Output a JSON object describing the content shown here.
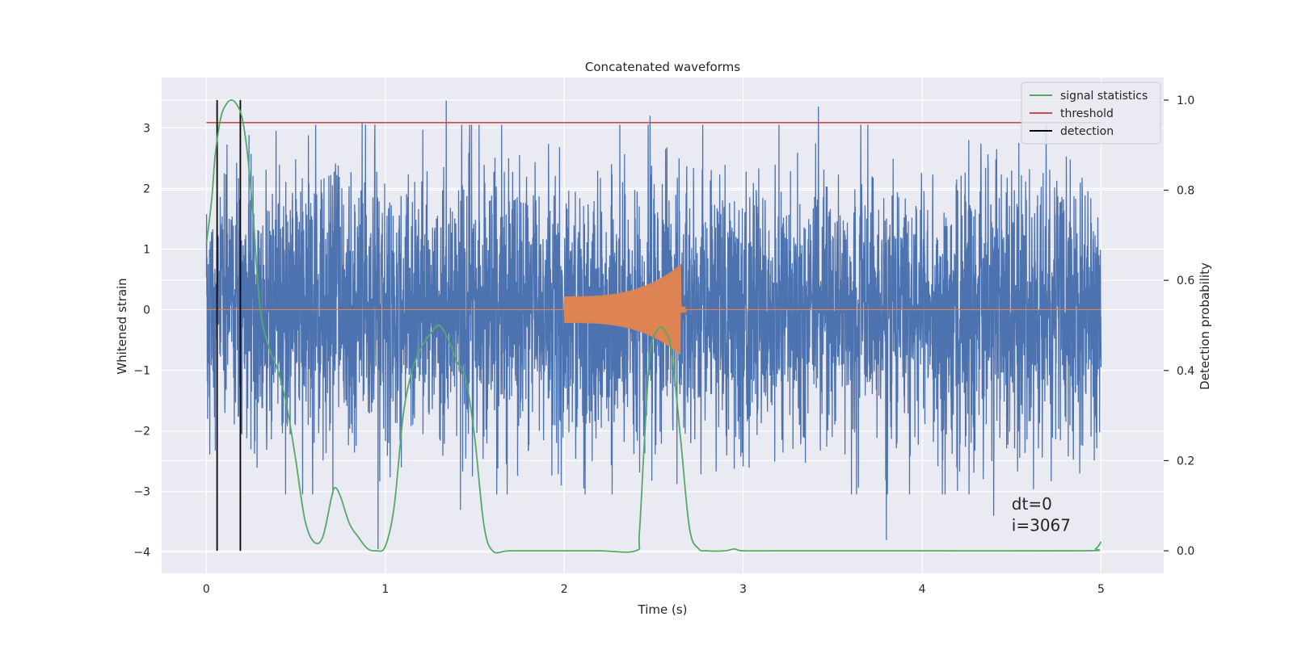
{
  "chart_data": {
    "type": "line",
    "title": "Concatenated waveforms",
    "xlabel": "Time (s)",
    "ylabel": "Whitened strain",
    "ylabel_right": "Detection probability",
    "xlim": [
      -0.25,
      5.35
    ],
    "ylim": [
      -4.35,
      3.83
    ],
    "ylim_right": [
      -0.05,
      1.05
    ],
    "x_ticks": [
      0,
      1,
      2,
      3,
      4,
      5
    ],
    "y_ticks": [
      -4,
      -3,
      -2,
      -1,
      0,
      1,
      2,
      3
    ],
    "y_ticks_right": [
      0.0,
      0.2,
      0.4,
      0.6,
      0.8,
      1.0
    ],
    "y_tick_labels_right": [
      "0.0",
      "0.2",
      "0.4",
      "0.6",
      "0.8",
      "1.0"
    ],
    "grid": true,
    "legend_position": "top-right",
    "background": "#eaeaf2",
    "series": [
      {
        "name": "",
        "kind": "strain-noise",
        "color": "#4c72b0",
        "axis": "left",
        "x_range": [
          0,
          5
        ],
        "envelope_amplitude": 1.3,
        "spikes": [
          [
            0.87,
            3.1
          ],
          [
            1.34,
            3.45
          ],
          [
            2.48,
            3.2
          ],
          [
            3.42,
            3.35
          ],
          [
            0.96,
            -3.95
          ],
          [
            1.42,
            -3.3
          ],
          [
            3.8,
            -3.8
          ],
          [
            4.4,
            -3.4
          ]
        ]
      },
      {
        "name": "",
        "kind": "chirp",
        "color": "#dd8452",
        "axis": "left",
        "t_start": 2.0,
        "t_merge": 2.65,
        "amplitude_start": 0.22,
        "amplitude_peak": 0.75,
        "x_range": [
          0,
          5
        ]
      },
      {
        "name": "signal statistics",
        "color": "#55a868",
        "axis": "right",
        "x": [
          0,
          0.03,
          0.05,
          0.08,
          0.11,
          0.14,
          0.17,
          0.2,
          0.23,
          0.26,
          0.3,
          0.35,
          0.4,
          0.45,
          0.5,
          0.55,
          0.6,
          0.65,
          0.7,
          0.72,
          0.75,
          0.8,
          0.85,
          0.9,
          0.95,
          1.0,
          1.05,
          1.1,
          1.15,
          1.2,
          1.25,
          1.3,
          1.35,
          1.4,
          1.45,
          1.5,
          1.55,
          1.6,
          1.7,
          2.0,
          2.2,
          2.4,
          2.42,
          2.45,
          2.48,
          2.52,
          2.56,
          2.6,
          2.65,
          2.7,
          2.75,
          2.8,
          2.9,
          2.95,
          3.0,
          3.2,
          4.0,
          4.9,
          4.97,
          5.0
        ],
        "y": [
          0.68,
          0.78,
          0.88,
          0.96,
          0.99,
          1.0,
          0.99,
          0.96,
          0.88,
          0.75,
          0.54,
          0.45,
          0.4,
          0.32,
          0.2,
          0.07,
          0.02,
          0.03,
          0.12,
          0.14,
          0.12,
          0.06,
          0.03,
          0.005,
          0.0,
          0.01,
          0.1,
          0.3,
          0.4,
          0.45,
          0.48,
          0.5,
          0.47,
          0.42,
          0.38,
          0.25,
          0.06,
          0.0,
          0.0,
          0.0,
          0.0,
          0.0,
          0.04,
          0.26,
          0.44,
          0.49,
          0.49,
          0.44,
          0.25,
          0.05,
          0.005,
          0.0,
          0.0,
          0.004,
          0.0,
          0.0,
          0.0,
          0.0,
          0.005,
          0.02
        ]
      },
      {
        "name": "threshold",
        "color": "#c44e52",
        "axis": "right",
        "x": [
          0,
          5
        ],
        "y": [
          0.95,
          0.95
        ]
      },
      {
        "name": "detection",
        "color": "#000000",
        "axis": "right",
        "x": [
          0.06,
          0.19
        ],
        "y_range": [
          0.0,
          1.0
        ]
      }
    ],
    "annotations": [
      {
        "text": "dt=0",
        "x": 4.5,
        "y": -3.3
      },
      {
        "text": "i=3067",
        "x": 4.5,
        "y": -3.65
      }
    ]
  }
}
